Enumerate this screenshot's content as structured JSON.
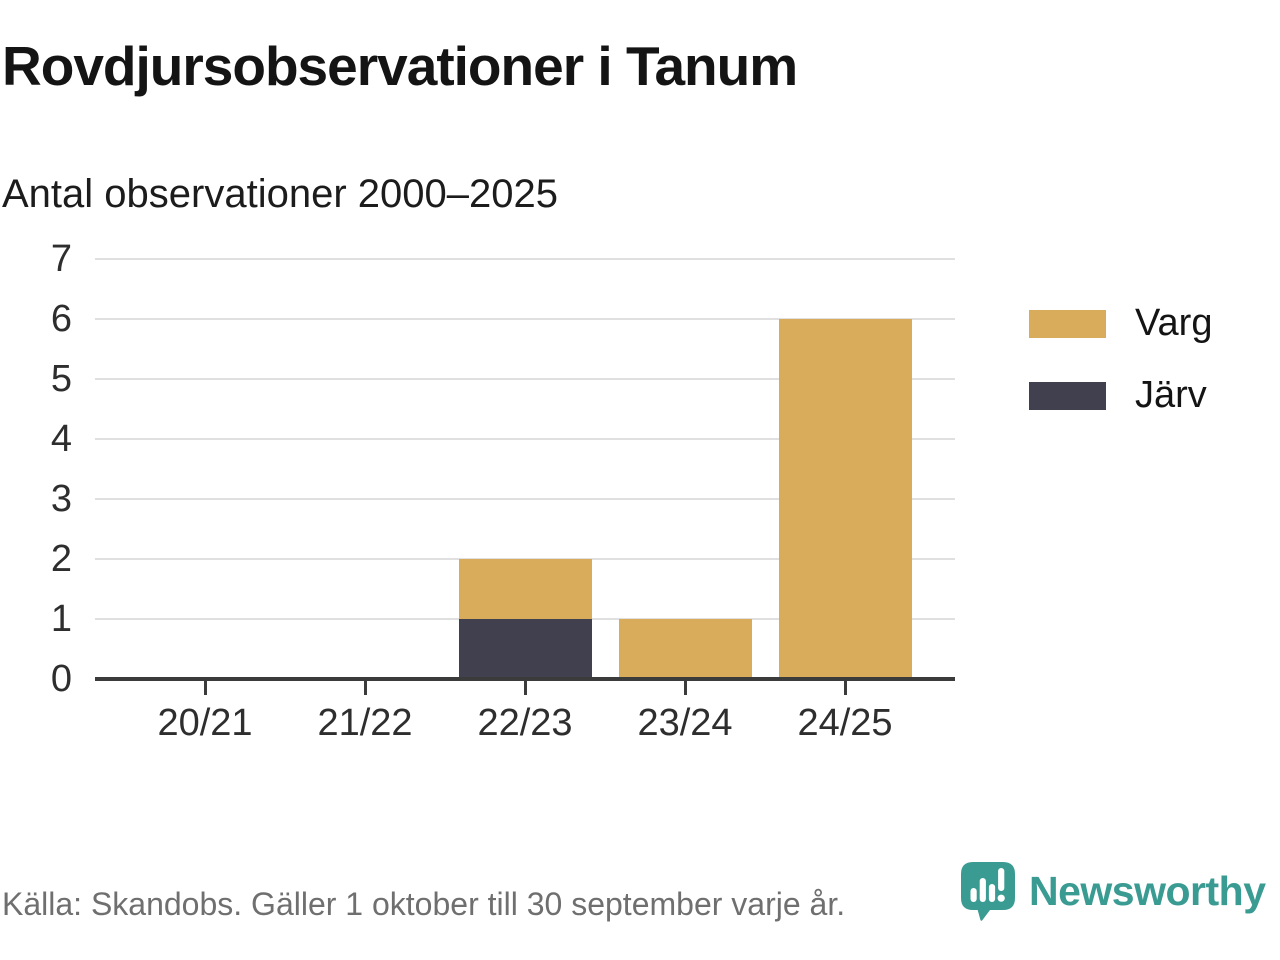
{
  "header": {
    "title": "Rovdjursobservationer i Tanum",
    "subtitle": "Antal observationer 2000–2025"
  },
  "chart_data": {
    "type": "bar",
    "stacked": true,
    "title": "Rovdjursobservationer i Tanum",
    "subtitle": "Antal observationer 2000–2025",
    "categories": [
      "20/21",
      "21/22",
      "22/23",
      "23/24",
      "24/25"
    ],
    "series": [
      {
        "name": "Varg",
        "color": "#d8ac5a",
        "values": [
          0,
          0,
          1,
          1,
          6
        ]
      },
      {
        "name": "Järv",
        "color": "#41404f",
        "values": [
          0,
          0,
          1,
          0,
          0
        ]
      }
    ],
    "stack_bottom_to_top": [
      "Järv",
      "Varg"
    ],
    "totals": [
      0,
      0,
      2,
      1,
      6
    ],
    "xlabel": "",
    "ylabel": "",
    "ylim": [
      0,
      7
    ],
    "yticks": [
      0,
      1,
      2,
      3,
      4,
      5,
      6,
      7
    ],
    "grid": true,
    "legend_position": "right"
  },
  "footer": {
    "source": "Källa: Skandobs. Gäller 1 oktober till 30 september varje år."
  },
  "branding": {
    "logo_text": "Newsworthy",
    "logo_icon": "bar-chart-speech-bubble-icon",
    "teal": "#3a9b92"
  },
  "colors": {
    "varg": "#d8ac5a",
    "jarv": "#41404f",
    "gridline": "#e0e0e0",
    "axis": "#3b3b3b",
    "text": "#141414",
    "muted_text": "#6f6f6f"
  }
}
